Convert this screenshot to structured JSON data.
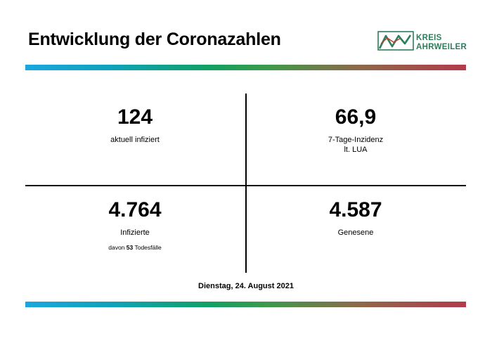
{
  "header": {
    "title": "Entwicklung der Coronazahlen",
    "logo": {
      "line1": "KREIS",
      "line2": "AHRWEILER",
      "icon": "kreis-ahrweiler-logo-icon",
      "colors": {
        "green": "#2e7d5b",
        "red": "#c0392b"
      }
    }
  },
  "stats": {
    "active": {
      "value": "124",
      "label": "aktuell infiziert"
    },
    "incidence": {
      "value": "66,9",
      "label_line1": "7-Tage-Inzidenz",
      "label_line2": "lt. LUA"
    },
    "infected": {
      "value": "4.764",
      "label": "Infizierte",
      "deaths_prefix": "davon",
      "deaths_count": "53",
      "deaths_suffix": "Todesfälle"
    },
    "recovered": {
      "value": "4.587",
      "label": "Genesene"
    }
  },
  "footer": {
    "date": "Dienstag, 24. August 2021"
  },
  "colors": {
    "bar_start": "#1aa7df",
    "bar_mid": "#12a063",
    "bar_end": "#b33a4c"
  }
}
